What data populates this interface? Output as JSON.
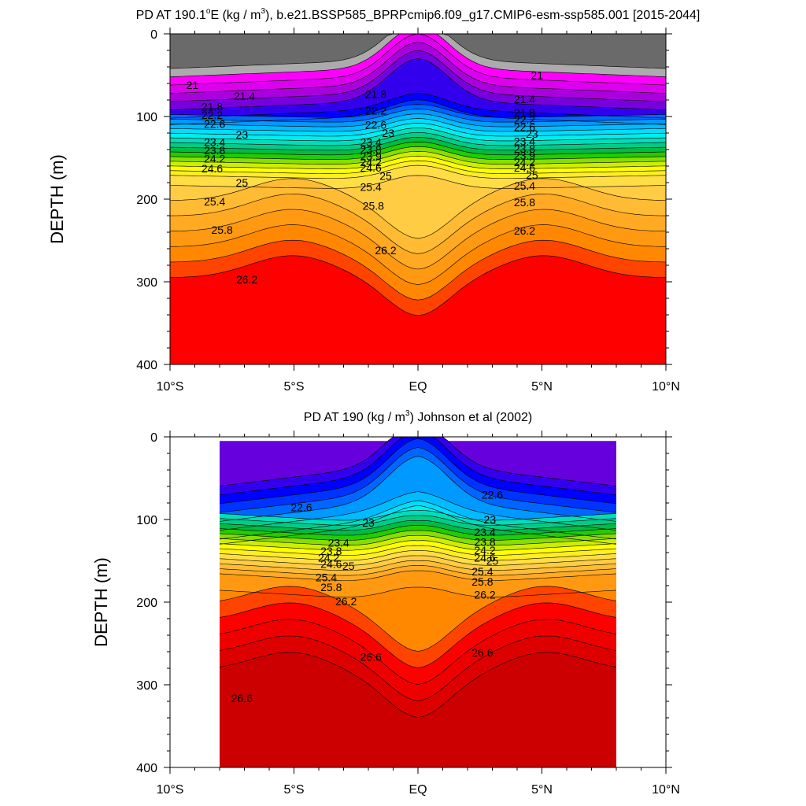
{
  "chart_data": [
    {
      "type": "contour",
      "title": "PD AT 190.1°E (kg / m³), b.e21.BSSP585_BPRPcmip6.f09_g17.CMIP6-esm-ssp585.001 [2015-2044]",
      "title_main": "PD AT 190.1",
      "title_deg": "o",
      "title_e": "E (kg / m",
      "title_cube": "3",
      "title_rest": "), b.e21.BSSP585_BPRPcmip6.f09_g17.CMIP6-esm-ssp585.001 [2015-2044]",
      "ylabel": "DEPTH (m)",
      "xlim": [
        -10,
        10
      ],
      "ylim": [
        400,
        0
      ],
      "xticks": [
        -10,
        -5,
        0,
        5,
        10
      ],
      "xticklabels": [
        "10°S",
        "5°S",
        "EQ",
        "5°N",
        "10°N"
      ],
      "yticks": [
        0,
        100,
        200,
        300,
        400
      ],
      "yticklabels": [
        "0",
        "100",
        "200",
        "300",
        "400"
      ],
      "data_x_range": [
        -10,
        10
      ],
      "contour_labels": [
        {
          "text": "21",
          "x": -9.1,
          "y": 62
        },
        {
          "text": "21.4",
          "x": -7,
          "y": 75
        },
        {
          "text": "21.8",
          "x": -8.3,
          "y": 88
        },
        {
          "text": "22.2",
          "x": -8.3,
          "y": 98
        },
        {
          "text": "22.6",
          "x": -8.2,
          "y": 109
        },
        {
          "text": "23",
          "x": -7.1,
          "y": 122
        },
        {
          "text": "23.4",
          "x": -8.2,
          "y": 131
        },
        {
          "text": "23.8",
          "x": -8.2,
          "y": 141
        },
        {
          "text": "24.2",
          "x": -8.2,
          "y": 151
        },
        {
          "text": "24.6",
          "x": -8.3,
          "y": 163
        },
        {
          "text": "25",
          "x": -7.1,
          "y": 180
        },
        {
          "text": "25.4",
          "x": -8.2,
          "y": 203
        },
        {
          "text": "25.8",
          "x": -7.9,
          "y": 237
        },
        {
          "text": "26.2",
          "x": -6.9,
          "y": 297
        },
        {
          "text": "21.8",
          "x": -1.7,
          "y": 73
        },
        {
          "text": "22.2",
          "x": -1.7,
          "y": 93
        },
        {
          "text": "22.6",
          "x": -1.7,
          "y": 110
        },
        {
          "text": "23",
          "x": -1.2,
          "y": 120
        },
        {
          "text": "23.4",
          "x": -1.9,
          "y": 131
        },
        {
          "text": "23.8",
          "x": -1.9,
          "y": 140
        },
        {
          "text": "23.9",
          "x": -1.9,
          "y": 148
        },
        {
          "text": "24.2",
          "x": -1.9,
          "y": 155
        },
        {
          "text": "24.6",
          "x": -1.9,
          "y": 162
        },
        {
          "text": "25",
          "x": -1.3,
          "y": 172
        },
        {
          "text": "25.4",
          "x": -1.9,
          "y": 185
        },
        {
          "text": "25.8",
          "x": -1.8,
          "y": 208
        },
        {
          "text": "26.2",
          "x": -1.3,
          "y": 262
        },
        {
          "text": "21",
          "x": 4.8,
          "y": 50
        },
        {
          "text": "21.4",
          "x": 4.3,
          "y": 79
        },
        {
          "text": "21.8",
          "x": 4.3,
          "y": 95
        },
        {
          "text": "22.2",
          "x": 4.3,
          "y": 104
        },
        {
          "text": "22.6",
          "x": 4.3,
          "y": 113
        },
        {
          "text": "23",
          "x": 4.6,
          "y": 121
        },
        {
          "text": "23.4",
          "x": 4.3,
          "y": 130
        },
        {
          "text": "23.8",
          "x": 4.3,
          "y": 139
        },
        {
          "text": "23.9",
          "x": 4.3,
          "y": 147
        },
        {
          "text": "24.2",
          "x": 4.3,
          "y": 155
        },
        {
          "text": "24.6",
          "x": 4.3,
          "y": 162
        },
        {
          "text": "25",
          "x": 4.6,
          "y": 171
        },
        {
          "text": "25.4",
          "x": 4.3,
          "y": 184
        },
        {
          "text": "25.8",
          "x": 4.3,
          "y": 204
        },
        {
          "text": "26.2",
          "x": 4.3,
          "y": 238
        }
      ]
    },
    {
      "type": "contour",
      "title": "PD AT 190 (kg / m³) Johnson et al (2002)",
      "title_main": "PD AT 190 (kg / m",
      "title_deg": "",
      "title_e": "",
      "title_cube": "3",
      "title_rest": ") Johnson et al (2002)",
      "ylabel": "DEPTH (m)",
      "xlim": [
        -10,
        10
      ],
      "ylim": [
        400,
        0
      ],
      "xticks": [
        -10,
        -5,
        0,
        5,
        10
      ],
      "xticklabels": [
        "10°S",
        "5°S",
        "EQ",
        "5°N",
        "10°N"
      ],
      "yticks": [
        0,
        100,
        200,
        300,
        400
      ],
      "yticklabels": [
        "0",
        "100",
        "200",
        "300",
        "400"
      ],
      "data_x_range": [
        -8,
        8
      ],
      "contour_labels": [
        {
          "text": "22.6",
          "x": -4.7,
          "y": 85
        },
        {
          "text": "23",
          "x": -2,
          "y": 104
        },
        {
          "text": "23.4",
          "x": -3.2,
          "y": 128
        },
        {
          "text": "23.8",
          "x": -3.5,
          "y": 138
        },
        {
          "text": "24.2",
          "x": -3.6,
          "y": 146
        },
        {
          "text": "24.6",
          "x": -3.5,
          "y": 154
        },
        {
          "text": "25",
          "x": -2.8,
          "y": 156
        },
        {
          "text": "25.4",
          "x": -3.7,
          "y": 170
        },
        {
          "text": "25.8",
          "x": -3.5,
          "y": 182
        },
        {
          "text": "26.2",
          "x": -2.9,
          "y": 199
        },
        {
          "text": "26.6",
          "x": -1.9,
          "y": 266
        },
        {
          "text": "26.6",
          "x": -7.1,
          "y": 316
        },
        {
          "text": "22.6",
          "x": 3,
          "y": 70
        },
        {
          "text": "23",
          "x": 2.9,
          "y": 100
        },
        {
          "text": "23.4",
          "x": 2.7,
          "y": 115
        },
        {
          "text": "23.8",
          "x": 2.7,
          "y": 127
        },
        {
          "text": "24.2",
          "x": 2.7,
          "y": 137
        },
        {
          "text": "24.6",
          "x": 2.7,
          "y": 146
        },
        {
          "text": "25",
          "x": 3,
          "y": 150
        },
        {
          "text": "25.4",
          "x": 2.6,
          "y": 163
        },
        {
          "text": "25.8",
          "x": 2.6,
          "y": 175
        },
        {
          "text": "26.2",
          "x": 2.7,
          "y": 191
        },
        {
          "text": "26.6",
          "x": 2.6,
          "y": 261
        }
      ]
    }
  ]
}
